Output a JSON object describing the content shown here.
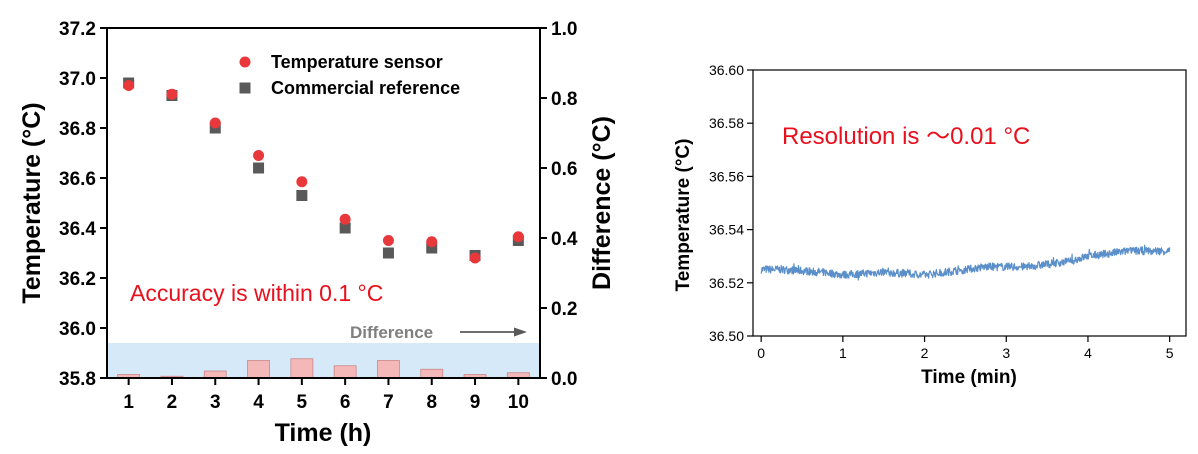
{
  "chart_data": [
    {
      "type": "scatter+bar",
      "title": "",
      "xlabel": "Time (h)",
      "ylabel": "Temperature (°C)",
      "y2label": "Difference (°C)",
      "xlim": [
        0.5,
        10.5
      ],
      "ylim": [
        35.8,
        37.2
      ],
      "y2lim": [
        0.0,
        1.0
      ],
      "x_ticks": [
        "1",
        "2",
        "3",
        "4",
        "5",
        "6",
        "7",
        "8",
        "9",
        "10"
      ],
      "y_ticks": [
        "35.8",
        "36.0",
        "36.2",
        "36.4",
        "36.6",
        "36.8",
        "37.0",
        "37.2"
      ],
      "y2_ticks": [
        "0.0",
        "0.2",
        "0.4",
        "0.6",
        "0.8",
        "1.0"
      ],
      "x": [
        1,
        2,
        3,
        4,
        5,
        6,
        7,
        8,
        9,
        10
      ],
      "series": [
        {
          "name": "Temperature sensor",
          "marker": "circle",
          "color": "#e8383c",
          "values": [
            36.97,
            36.935,
            36.82,
            36.69,
            36.585,
            36.435,
            36.35,
            36.345,
            36.28,
            36.365
          ]
        },
        {
          "name": "Commercial reference",
          "marker": "square",
          "color": "#595959",
          "values": [
            36.98,
            36.93,
            36.8,
            36.64,
            36.53,
            36.4,
            36.3,
            36.32,
            36.29,
            36.35
          ]
        },
        {
          "name": "Difference",
          "type": "bar",
          "axis": "y2",
          "color": "#f4b8b8",
          "values": [
            0.01,
            0.005,
            0.02,
            0.05,
            0.055,
            0.035,
            0.05,
            0.025,
            0.01,
            0.015
          ]
        }
      ],
      "accuracy_band": {
        "y2_range": [
          0.0,
          0.1
        ],
        "color": "#d6e9f8"
      },
      "annotations": [
        {
          "text": "Accuracy is within 0.1 °C",
          "color": "#e8101c"
        },
        {
          "text": "Difference",
          "color": "#7f7f7f"
        }
      ],
      "legend_placement": "top-right",
      "grid": false
    },
    {
      "type": "line",
      "title": "",
      "xlabel": "Time (min)",
      "ylabel": "Temperature (°C)",
      "xlim": [
        -0.1,
        5.2
      ],
      "ylim": [
        36.5,
        36.6
      ],
      "x_ticks": [
        "0",
        "1",
        "2",
        "3",
        "4",
        "5"
      ],
      "y_ticks": [
        "36.50",
        "36.52",
        "36.54",
        "36.56",
        "36.58",
        "36.60"
      ],
      "series": [
        {
          "color": "#5b8fc9",
          "x": [
            0,
            0.25,
            0.5,
            0.75,
            1.0,
            1.25,
            1.5,
            1.75,
            2.0,
            2.25,
            2.5,
            2.75,
            3.0,
            3.25,
            3.5,
            3.75,
            4.0,
            4.25,
            4.5,
            4.75,
            5.0
          ],
          "values": [
            36.525,
            36.525,
            36.5245,
            36.524,
            36.523,
            36.5235,
            36.524,
            36.5235,
            36.523,
            36.524,
            36.525,
            36.526,
            36.526,
            36.526,
            36.527,
            36.528,
            36.53,
            36.531,
            36.532,
            36.532,
            36.532
          ]
        }
      ],
      "annotations": [
        {
          "text": "Resolution is ～0.01 °C",
          "color": "#e8101c"
        }
      ],
      "grid": false
    }
  ]
}
